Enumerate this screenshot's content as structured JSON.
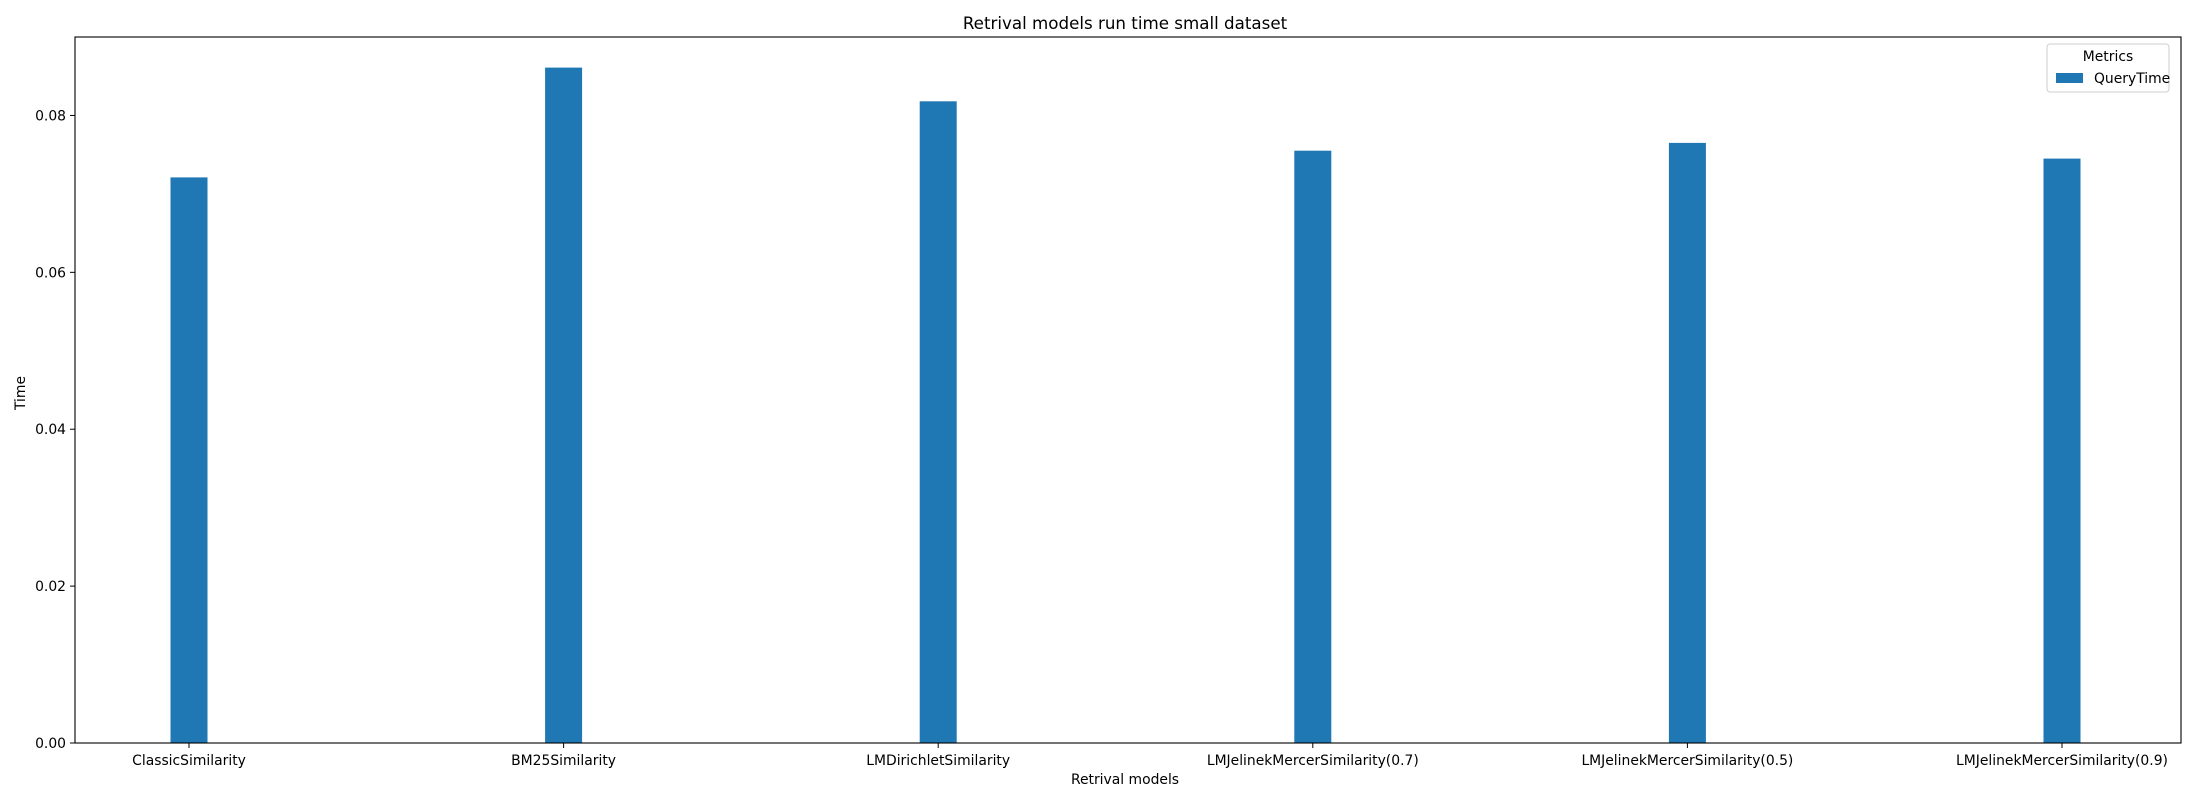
{
  "chart_data": {
    "type": "bar",
    "title": "Retrival models run time small dataset",
    "xlabel": "Retrival models",
    "ylabel": "Time",
    "categories": [
      "ClassicSimilarity",
      "BM25Similarity",
      "LMDirichletSimilarity",
      "LMJelinekMercerSimilarity(0.7)",
      "LMJelinekMercerSimilarity(0.5)",
      "LMJelinekMercerSimilarity(0.9)"
    ],
    "series": [
      {
        "name": "QueryTime",
        "color": "#1f77b4",
        "values": [
          0.0721,
          0.0861,
          0.0818,
          0.0755,
          0.0765,
          0.0745
        ]
      }
    ],
    "ylim": [
      0,
      0.09
    ],
    "yticks": [
      0.0,
      0.02,
      0.04,
      0.06,
      0.08
    ],
    "ytick_labels": [
      "0.00",
      "0.02",
      "0.04",
      "0.06",
      "0.08"
    ],
    "legend": {
      "title": "Metrics",
      "position": "top-right"
    },
    "grid": false
  }
}
